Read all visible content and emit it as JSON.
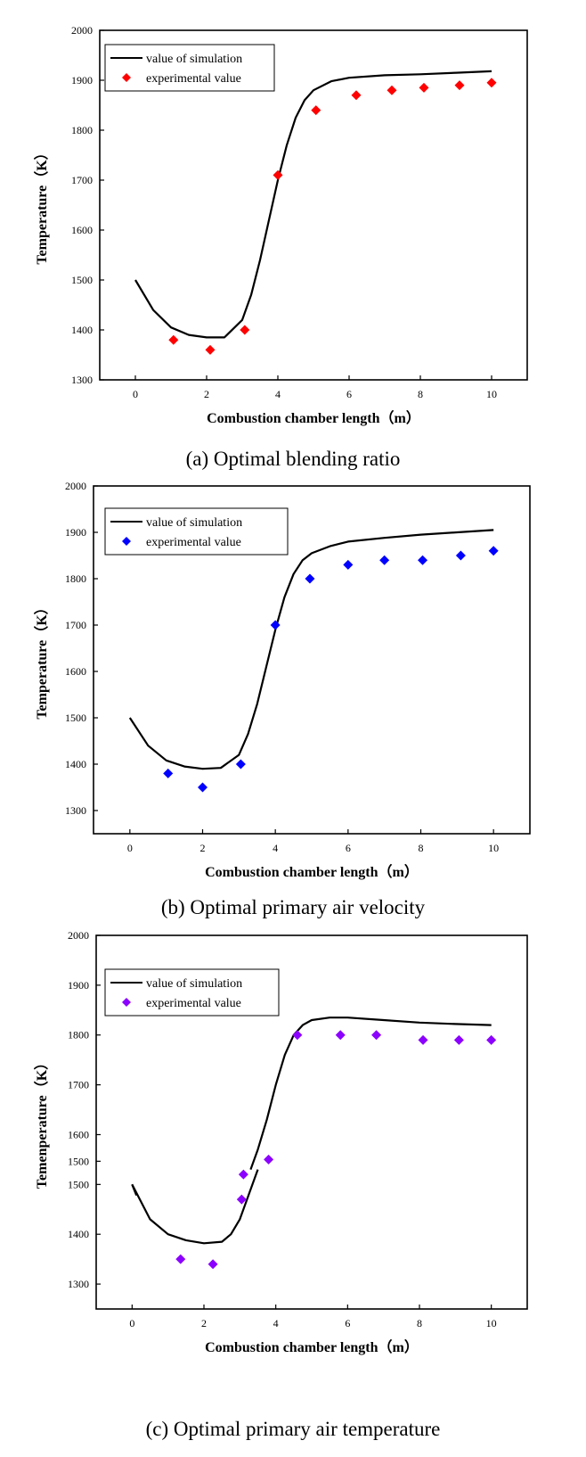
{
  "chart_data": [
    {
      "type": "line",
      "caption": "(a) Optimal blending ratio",
      "xlabel": "Combustion chamber length（m）",
      "ylabel": "Temperature（K）",
      "xlim": [
        -1,
        11
      ],
      "ylim": [
        1300,
        2000
      ],
      "xticks": [
        0,
        2,
        4,
        6,
        8,
        10
      ],
      "yticks": [
        1300,
        1400,
        1500,
        1600,
        1700,
        1800,
        1900,
        2000
      ],
      "legend_position": "top-left",
      "series": [
        {
          "name": "value of simulation",
          "kind": "line",
          "color": "#000000",
          "x": [
            0,
            0.5,
            1.0,
            1.5,
            2.0,
            2.5,
            3.0,
            3.25,
            3.5,
            3.75,
            4.0,
            4.25,
            4.5,
            4.75,
            5.0,
            5.5,
            6.0,
            7.0,
            8.0,
            9.0,
            10.0
          ],
          "y": [
            1500,
            1440,
            1405,
            1390,
            1385,
            1385,
            1420,
            1470,
            1540,
            1620,
            1700,
            1770,
            1825,
            1860,
            1880,
            1898,
            1905,
            1910,
            1912,
            1915,
            1918
          ]
        },
        {
          "name": "experimental value",
          "kind": "scatter",
          "color": "#ff0000",
          "x": [
            1.07,
            2.1,
            3.07,
            4.0,
            5.07,
            6.2,
            7.2,
            8.1,
            9.1,
            10.0
          ],
          "y": [
            1380,
            1360,
            1400,
            1710,
            1840,
            1870,
            1880,
            1885,
            1890,
            1895
          ]
        }
      ]
    },
    {
      "type": "line",
      "caption": "(b) Optimal primary air velocity",
      "xlabel": "Combustion chamber length（m）",
      "ylabel": "Temperature（K）",
      "xlim": [
        -1,
        11
      ],
      "ylim": [
        1250,
        2000
      ],
      "xticks": [
        0,
        2,
        4,
        6,
        8,
        10
      ],
      "yticks": [
        1300,
        1400,
        1500,
        1600,
        1700,
        1800,
        1900,
        2000
      ],
      "legend_position": "top-left",
      "series": [
        {
          "name": "value of simulation",
          "kind": "line",
          "color": "#000000",
          "x": [
            0,
            0.5,
            1.0,
            1.5,
            2.0,
            2.5,
            3.0,
            3.25,
            3.5,
            3.75,
            4.0,
            4.25,
            4.5,
            4.75,
            5.0,
            5.5,
            6.0,
            7.0,
            8.0,
            9.0,
            10.0
          ],
          "y": [
            1500,
            1440,
            1408,
            1395,
            1390,
            1392,
            1420,
            1465,
            1530,
            1610,
            1690,
            1760,
            1810,
            1840,
            1855,
            1870,
            1880,
            1888,
            1895,
            1900,
            1905
          ]
        },
        {
          "name": "experimental value",
          "kind": "scatter",
          "color": "#0000ff",
          "x": [
            1.05,
            2.0,
            3.05,
            4.0,
            4.95,
            6.0,
            7.0,
            8.05,
            9.1,
            10.0
          ],
          "y": [
            1380,
            1350,
            1400,
            1700,
            1800,
            1830,
            1840,
            1840,
            1850,
            1860
          ]
        }
      ]
    },
    {
      "type": "line",
      "caption": "(c) Optimal primary air temperature",
      "xlabel": "Combustion chamber length（m）",
      "ylabel": "Temenperature（K）",
      "xlim": [
        -1,
        11
      ],
      "ylim": [
        1250,
        2000
      ],
      "xticks": [
        0,
        2,
        4,
        6,
        8,
        10
      ],
      "yticks": [
        1300,
        1400,
        1500,
        1600,
        1700,
        1800,
        1900,
        2000
      ],
      "extra_ytick": 1500,
      "legend_position": "top-left",
      "series": [
        {
          "name": "value of simulation",
          "kind": "line",
          "color": "#000000",
          "x": [
            0,
            0.5,
            1.0,
            1.5,
            2.0,
            2.5,
            2.75,
            3.0,
            3.25,
            3.5
          ],
          "y": [
            1500,
            1430,
            1400,
            1388,
            1382,
            1385,
            1400,
            1430,
            1480,
            1530
          ]
        },
        {
          "name": "value of simulation",
          "kind": "line",
          "color": "#000000",
          "x": [
            3.3,
            3.5,
            3.75,
            4.0,
            4.25,
            4.5,
            4.75,
            5.0,
            5.5,
            6.0,
            7.0,
            8.0,
            9.0,
            10.0
          ],
          "y": [
            1530,
            1570,
            1630,
            1700,
            1760,
            1800,
            1820,
            1830,
            1835,
            1835,
            1830,
            1825,
            1822,
            1820
          ]
        },
        {
          "name": "value of simulation",
          "kind": "line",
          "color": "#000000",
          "x": [
            0,
            0.12
          ],
          "y": [
            1500,
            1478
          ]
        },
        {
          "name": "experimental value",
          "kind": "scatter",
          "color": "#8b00ff",
          "x": [
            1.35,
            2.25,
            3.05,
            3.1,
            3.8,
            4.6,
            5.8,
            6.8,
            8.1,
            9.1,
            10.0
          ],
          "y": [
            1350,
            1340,
            1470,
            1520,
            1550,
            1800,
            1800,
            1800,
            1790,
            1790,
            1790
          ]
        }
      ]
    }
  ]
}
